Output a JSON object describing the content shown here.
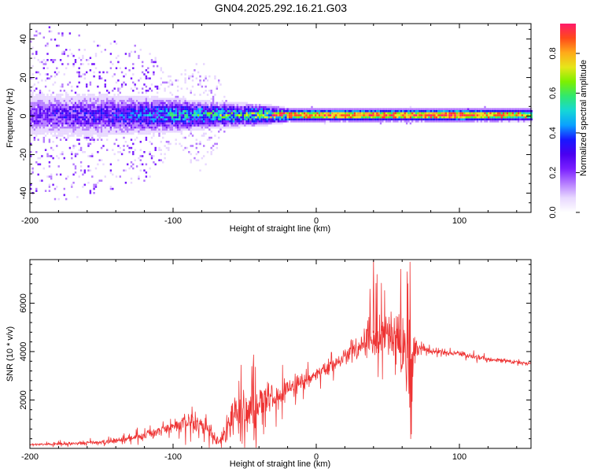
{
  "figure_title": "GN04.2025.292.16.21.G03",
  "colors": {
    "snr_line": "#ee3333",
    "axis": "#000000",
    "background": "#ffffff",
    "colormap": [
      "#ffffff",
      "#e8d8ff",
      "#b57cff",
      "#7a1fff",
      "#4a00f0",
      "#1818ff",
      "#0aa0ff",
      "#15d7d7",
      "#30e870",
      "#7cf000",
      "#e6e61a",
      "#ffaa1a",
      "#ff4a1a",
      "#ff1a6a"
    ]
  },
  "chart_data": [
    {
      "type": "heatmap",
      "name": "spectrogram",
      "xlabel": "Height of straight line (km)",
      "ylabel": "Frequency (Hz)",
      "xlim": [
        -200,
        150
      ],
      "ylim": [
        -50,
        48
      ],
      "xticks": [
        -200,
        -100,
        0,
        100
      ],
      "yticks": [
        -40,
        -20,
        0,
        20,
        40
      ],
      "colorbar": {
        "label": "Normalized spectral amplitude",
        "range": [
          0,
          0.95
        ],
        "ticks": [
          0.0,
          0.2,
          0.4,
          0.6,
          0.8
        ]
      },
      "description_of_structure": {
        "core_band_center_hz": 0,
        "core_band_halfwidth_hz": [
          [
            -200,
            10
          ],
          [
            -150,
            10
          ],
          [
            -100,
            8
          ],
          [
            -70,
            6
          ],
          [
            -40,
            5
          ],
          [
            -20,
            3
          ],
          [
            150,
            3
          ]
        ],
        "core_amplitude_profile": [
          [
            -200,
            0.22
          ],
          [
            -140,
            0.3
          ],
          [
            -100,
            0.42
          ],
          [
            -70,
            0.5
          ],
          [
            -40,
            0.55
          ],
          [
            -20,
            0.8
          ],
          [
            0,
            0.82
          ],
          [
            30,
            0.85
          ],
          [
            60,
            0.8
          ],
          [
            100,
            0.9
          ],
          [
            150,
            0.65
          ]
        ],
        "scatter_extent_hz": [
          [
            -200,
            48
          ],
          [
            -120,
            35
          ],
          [
            -100,
            20
          ],
          [
            -80,
            30
          ],
          [
            -70,
            20
          ],
          [
            -60,
            5
          ],
          [
            150,
            4
          ]
        ]
      }
    },
    {
      "type": "line",
      "name": "snr",
      "xlabel": "Height of straight line (km)",
      "ylabel": "SNR (10 * v/v)",
      "xlim": [
        -200,
        150
      ],
      "ylim": [
        0,
        7800
      ],
      "xticks": [
        -200,
        -100,
        0,
        100
      ],
      "yticks": [
        2000,
        4000,
        6000
      ],
      "series": [
        {
          "name": "SNR",
          "color": "#ee3333",
          "envelope_points": [
            {
              "x": -200,
              "base": 150,
              "amp": 80
            },
            {
              "x": -180,
              "base": 180,
              "amp": 100
            },
            {
              "x": -160,
              "base": 220,
              "amp": 120
            },
            {
              "x": -140,
              "base": 300,
              "amp": 150
            },
            {
              "x": -120,
              "base": 550,
              "amp": 250
            },
            {
              "x": -100,
              "base": 900,
              "amp": 400
            },
            {
              "x": -85,
              "base": 1100,
              "amp": 700
            },
            {
              "x": -75,
              "base": 800,
              "amp": 500
            },
            {
              "x": -68,
              "base": 250,
              "amp": 100
            },
            {
              "x": -62,
              "base": 900,
              "amp": 900
            },
            {
              "x": -50,
              "base": 1500,
              "amp": 1400
            },
            {
              "x": -35,
              "base": 1800,
              "amp": 1500
            },
            {
              "x": -20,
              "base": 2500,
              "amp": 600
            },
            {
              "x": 0,
              "base": 3000,
              "amp": 400
            },
            {
              "x": 20,
              "base": 3800,
              "amp": 500
            },
            {
              "x": 32,
              "base": 4300,
              "amp": 700
            },
            {
              "x": 38,
              "base": 4800,
              "amp": 1500
            },
            {
              "x": 45,
              "base": 4700,
              "amp": 1800
            },
            {
              "x": 55,
              "base": 4500,
              "amp": 2000
            },
            {
              "x": 60,
              "base": 3800,
              "amp": 2800
            },
            {
              "x": 66,
              "base": 3700,
              "amp": 3000
            },
            {
              "x": 70,
              "base": 4200,
              "amp": 500
            },
            {
              "x": 80,
              "base": 4000,
              "amp": 150
            },
            {
              "x": 100,
              "base": 3900,
              "amp": 150
            },
            {
              "x": 120,
              "base": 3700,
              "amp": 150
            },
            {
              "x": 150,
              "base": 3500,
              "amp": 130
            }
          ],
          "peak_values": [
            {
              "x": 40,
              "y": 7800
            },
            {
              "x": 59,
              "y": 7400
            },
            {
              "x": 64,
              "y": 6800
            },
            {
              "x": 66,
              "y": 400
            }
          ]
        }
      ]
    }
  ]
}
